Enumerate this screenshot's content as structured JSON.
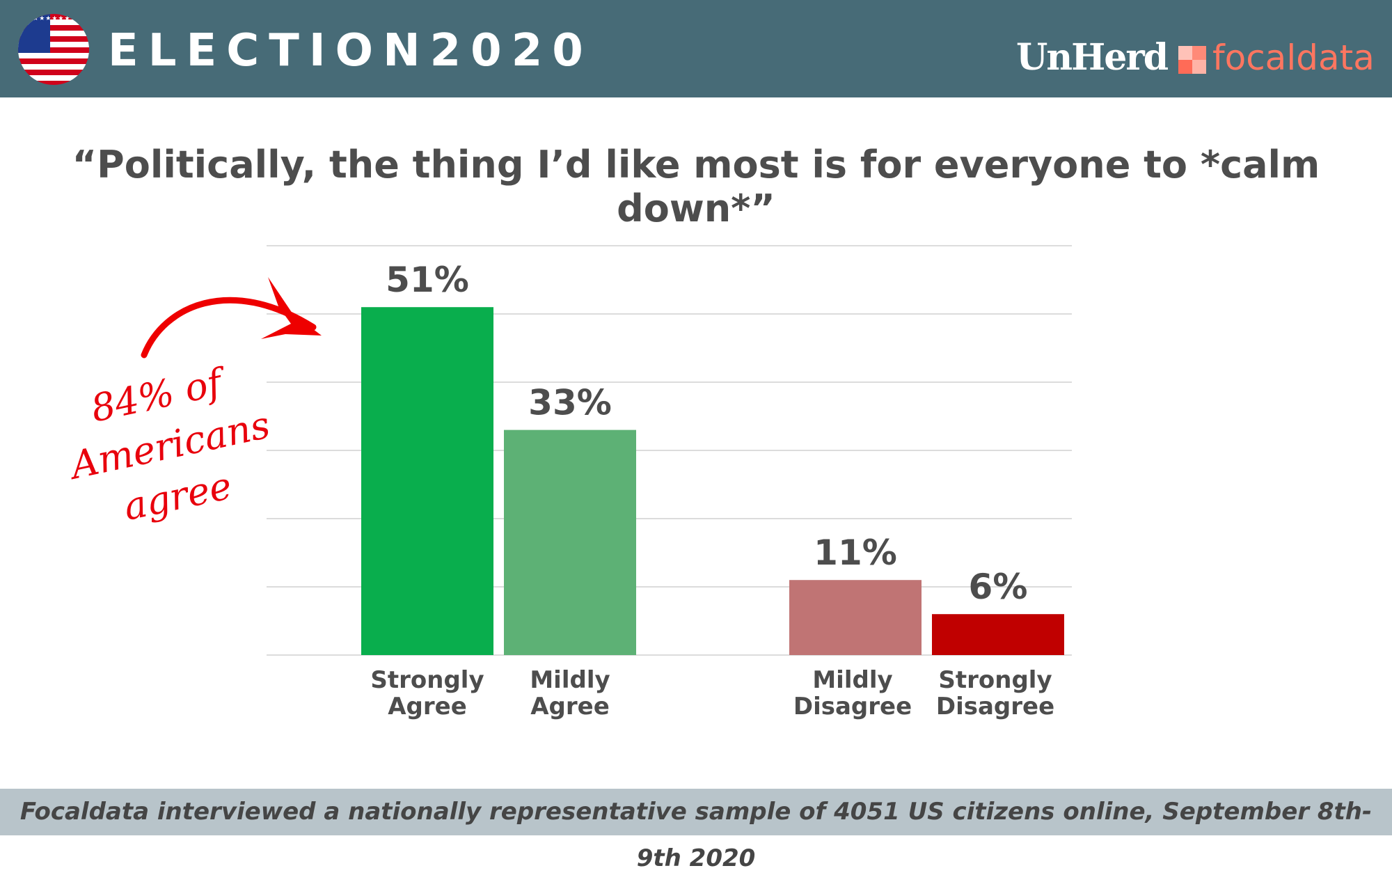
{
  "header": {
    "brand": "ELECTION2020",
    "publisher": "UnHerd",
    "partner": "focaldata"
  },
  "flag_stars": "★★★★★★★★★★★★★★★★★★★★",
  "annotation": {
    "line1": "84% of",
    "line2": "Americans",
    "line3": "agree"
  },
  "footer": "Focaldata interviewed a nationally representative sample of 4051 US citizens online, September 8th-9th 2020",
  "colors": {
    "header": "#476b77",
    "strongly_agree": "#09ae4d",
    "mildly_agree": "#5db175",
    "mildly_disagree": "#c07474",
    "strongly_disagree": "#c00000",
    "annotation": "#e8000c"
  },
  "chart_data": {
    "type": "bar",
    "title": "“Politically, the thing I’d like most is for everyone to *calm down*”",
    "categories": [
      [
        "Strongly",
        "Agree"
      ],
      [
        "Mildly",
        "Agree"
      ],
      [
        "Mildly",
        "Disagree"
      ],
      [
        "Strongly",
        "Disagree"
      ]
    ],
    "values": [
      51,
      33,
      11,
      6
    ],
    "data_labels": [
      "51%",
      "33%",
      "11%",
      "6%"
    ],
    "bar_colors": [
      "#09ae4d",
      "#5db175",
      "#c07474",
      "#c00000"
    ],
    "ylim": [
      0,
      60
    ],
    "grid": true,
    "gridline_step": 10,
    "xlabel": "",
    "ylabel": ""
  }
}
